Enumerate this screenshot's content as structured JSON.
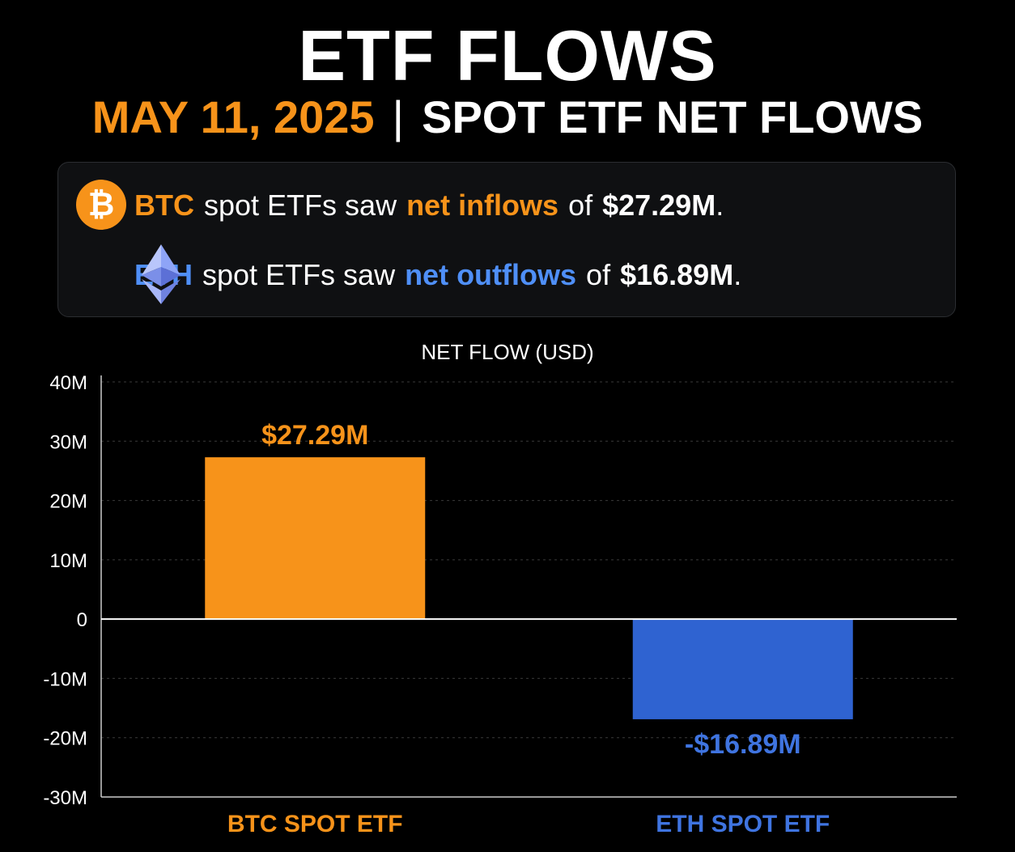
{
  "header": {
    "title": "ETF FLOWS",
    "date": "MAY 11, 2025",
    "separator": "|",
    "subtitle": "SPOT ETF NET FLOWS"
  },
  "summary": {
    "btc": {
      "icon": "bitcoin-icon",
      "coin": "BTC",
      "text1": "spot ETFs saw",
      "highlight": "net inflows",
      "text2": "of",
      "amount": "$27.29M",
      "end": "."
    },
    "eth": {
      "icon": "ethereum-icon",
      "coin": "ETH",
      "text1": "spot ETFs saw",
      "highlight": "net outflows",
      "text2": "of",
      "amount": "$16.89M",
      "end": "."
    }
  },
  "chart_data": {
    "type": "bar",
    "title": "NET FLOW (USD)",
    "categories": [
      "BTC SPOT ETF",
      "ETH SPOT ETF"
    ],
    "values": [
      27.29,
      -16.89
    ],
    "unit": "M USD",
    "data_labels": [
      "$27.29M",
      "-$16.89M"
    ],
    "colors": [
      "#f7931a",
      "#2f63d1"
    ],
    "label_colors": [
      "#f7931a",
      "#3f74e0"
    ],
    "ylim": [
      -30,
      40
    ],
    "yticks": [
      40,
      30,
      20,
      10,
      0,
      -10,
      -20,
      -30
    ],
    "ytick_labels": [
      "40M",
      "30M",
      "20M",
      "10M",
      "0",
      "-10M",
      "-20M",
      "-30M"
    ],
    "grid": true
  },
  "colors": {
    "background": "#000000",
    "btc": "#f7931a",
    "eth": "#4f8ff7",
    "text": "#ffffff"
  }
}
